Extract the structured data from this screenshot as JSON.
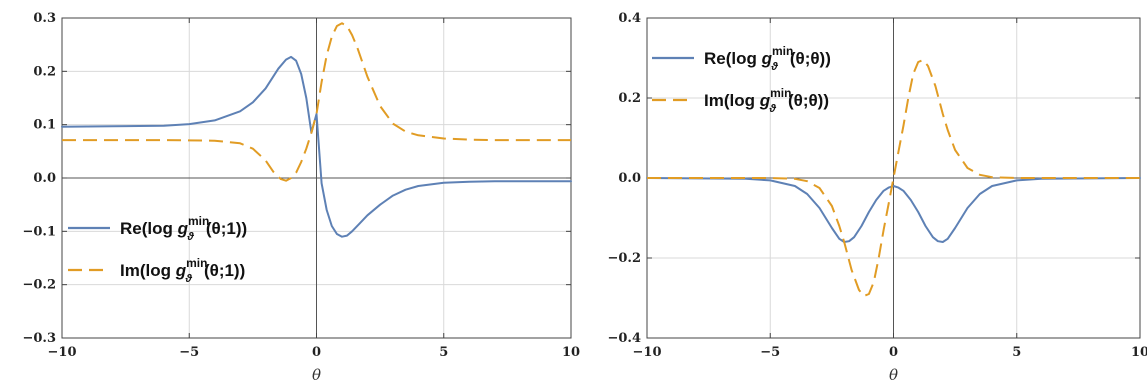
{
  "chart_data": [
    {
      "type": "line",
      "xlabel": "θ",
      "ylabel": "",
      "xlim": [
        -10,
        10
      ],
      "ylim": [
        -0.3,
        0.3
      ],
      "x_ticks": [
        -10,
        -5,
        0,
        5,
        10
      ],
      "x_tick_labels": [
        "−10",
        "−5",
        "0",
        "5",
        "10"
      ],
      "y_ticks": [
        -0.3,
        -0.2,
        -0.1,
        0.0,
        0.1,
        0.2,
        0.3
      ],
      "y_tick_labels": [
        "−0.3",
        "−0.2",
        "−0.1",
        "0.0",
        "0.1",
        "0.2",
        "0.3"
      ],
      "grid": true,
      "legend_position": "bottom-left",
      "series": [
        {
          "legend": {
            "prefix": "Re(log ",
            "fn": "g",
            "sup": "min",
            "sub": "ϑ",
            "args": "(θ;1))"
          },
          "color": "#5E81B5",
          "dash": "solid",
          "x": [
            -10,
            -8,
            -6,
            -5,
            -4,
            -3,
            -2.5,
            -2,
            -1.5,
            -1.2,
            -1.0,
            -0.8,
            -0.6,
            -0.4,
            -0.2,
            0,
            0.2,
            0.4,
            0.6,
            0.8,
            1.0,
            1.2,
            1.4,
            1.7,
            2,
            2.5,
            3,
            3.5,
            4,
            5,
            6,
            7,
            8,
            10
          ],
          "y": [
            0.096,
            0.097,
            0.098,
            0.101,
            0.108,
            0.125,
            0.142,
            0.168,
            0.205,
            0.222,
            0.227,
            0.22,
            0.195,
            0.15,
            0.085,
            0.12,
            -0.01,
            -0.06,
            -0.09,
            -0.105,
            -0.11,
            -0.108,
            -0.1,
            -0.085,
            -0.07,
            -0.05,
            -0.033,
            -0.022,
            -0.015,
            -0.009,
            -0.007,
            -0.006,
            -0.006,
            -0.006
          ]
        },
        {
          "legend": {
            "prefix": "Im(log ",
            "fn": "g",
            "sup": "min",
            "sub": "ϑ",
            "args": "(θ;1))"
          },
          "color": "#E19C24",
          "dash": "dashed",
          "x": [
            -10,
            -6,
            -4,
            -3,
            -2.5,
            -2,
            -1.7,
            -1.4,
            -1.2,
            -1.0,
            -0.8,
            -0.6,
            -0.4,
            -0.2,
            0,
            0.2,
            0.4,
            0.6,
            0.8,
            1.0,
            1.2,
            1.4,
            1.6,
            2,
            2.5,
            3,
            3.5,
            4,
            5,
            6,
            7,
            8,
            10
          ],
          "y": [
            0.071,
            0.071,
            0.07,
            0.065,
            0.055,
            0.033,
            0.012,
            -0.002,
            -0.005,
            0.0,
            0.01,
            0.03,
            0.055,
            0.085,
            0.12,
            0.18,
            0.23,
            0.265,
            0.285,
            0.29,
            0.285,
            0.268,
            0.245,
            0.19,
            0.135,
            0.102,
            0.087,
            0.08,
            0.074,
            0.072,
            0.071,
            0.071,
            0.071
          ]
        }
      ]
    },
    {
      "type": "line",
      "xlabel": "θ",
      "ylabel": "",
      "xlim": [
        -10,
        10
      ],
      "ylim": [
        -0.4,
        0.4
      ],
      "x_ticks": [
        -10,
        -5,
        0,
        5,
        10
      ],
      "x_tick_labels": [
        "−10",
        "−5",
        "0",
        "5",
        "10"
      ],
      "y_ticks": [
        -0.4,
        -0.2,
        0.0,
        0.2,
        0.4
      ],
      "y_tick_labels": [
        "−0.4",
        "−0.2",
        "0.0",
        "0.2",
        "0.4"
      ],
      "grid": true,
      "legend_position": "top-left",
      "series": [
        {
          "legend": {
            "prefix": "Re(log ",
            "fn": "g",
            "sup": "min",
            "sub": "ϑ",
            "args": "(θ;θ))"
          },
          "color": "#5E81B5",
          "dash": "solid",
          "x": [
            -10,
            -6,
            -5,
            -4,
            -3.5,
            -3,
            -2.5,
            -2.2,
            -2.0,
            -1.8,
            -1.6,
            -1.3,
            -1.0,
            -0.7,
            -0.4,
            -0.2,
            0,
            0.2,
            0.4,
            0.7,
            1.0,
            1.3,
            1.6,
            1.8,
            2.0,
            2.2,
            2.5,
            3,
            3.5,
            4,
            5,
            6,
            10
          ],
          "y": [
            0.0,
            -0.002,
            -0.006,
            -0.02,
            -0.04,
            -0.075,
            -0.125,
            -0.152,
            -0.16,
            -0.158,
            -0.148,
            -0.12,
            -0.085,
            -0.055,
            -0.032,
            -0.024,
            -0.02,
            -0.024,
            -0.032,
            -0.055,
            -0.085,
            -0.12,
            -0.148,
            -0.158,
            -0.16,
            -0.152,
            -0.125,
            -0.075,
            -0.04,
            -0.02,
            -0.006,
            -0.002,
            0.0
          ]
        },
        {
          "legend": {
            "prefix": "Im(log ",
            "fn": "g",
            "sup": "min",
            "sub": "ϑ",
            "args": "(θ;θ))"
          },
          "color": "#E19C24",
          "dash": "dashed",
          "x": [
            -10,
            -5,
            -4,
            -3.5,
            -3,
            -2.5,
            -2.2,
            -2.0,
            -1.7,
            -1.4,
            -1.2,
            -1.0,
            -0.8,
            -0.6,
            -0.4,
            -0.2,
            0,
            0.2,
            0.4,
            0.6,
            0.8,
            1.0,
            1.2,
            1.4,
            1.7,
            2.0,
            2.2,
            2.5,
            3,
            3.5,
            4,
            5,
            10
          ],
          "y": [
            0.0,
            0.0,
            -0.002,
            -0.008,
            -0.025,
            -0.07,
            -0.12,
            -0.16,
            -0.23,
            -0.28,
            -0.295,
            -0.29,
            -0.26,
            -0.2,
            -0.13,
            -0.065,
            0.0,
            0.065,
            0.13,
            0.2,
            0.26,
            0.29,
            0.295,
            0.28,
            0.23,
            0.16,
            0.12,
            0.07,
            0.025,
            0.008,
            0.002,
            0.0,
            0.0
          ]
        }
      ]
    }
  ]
}
